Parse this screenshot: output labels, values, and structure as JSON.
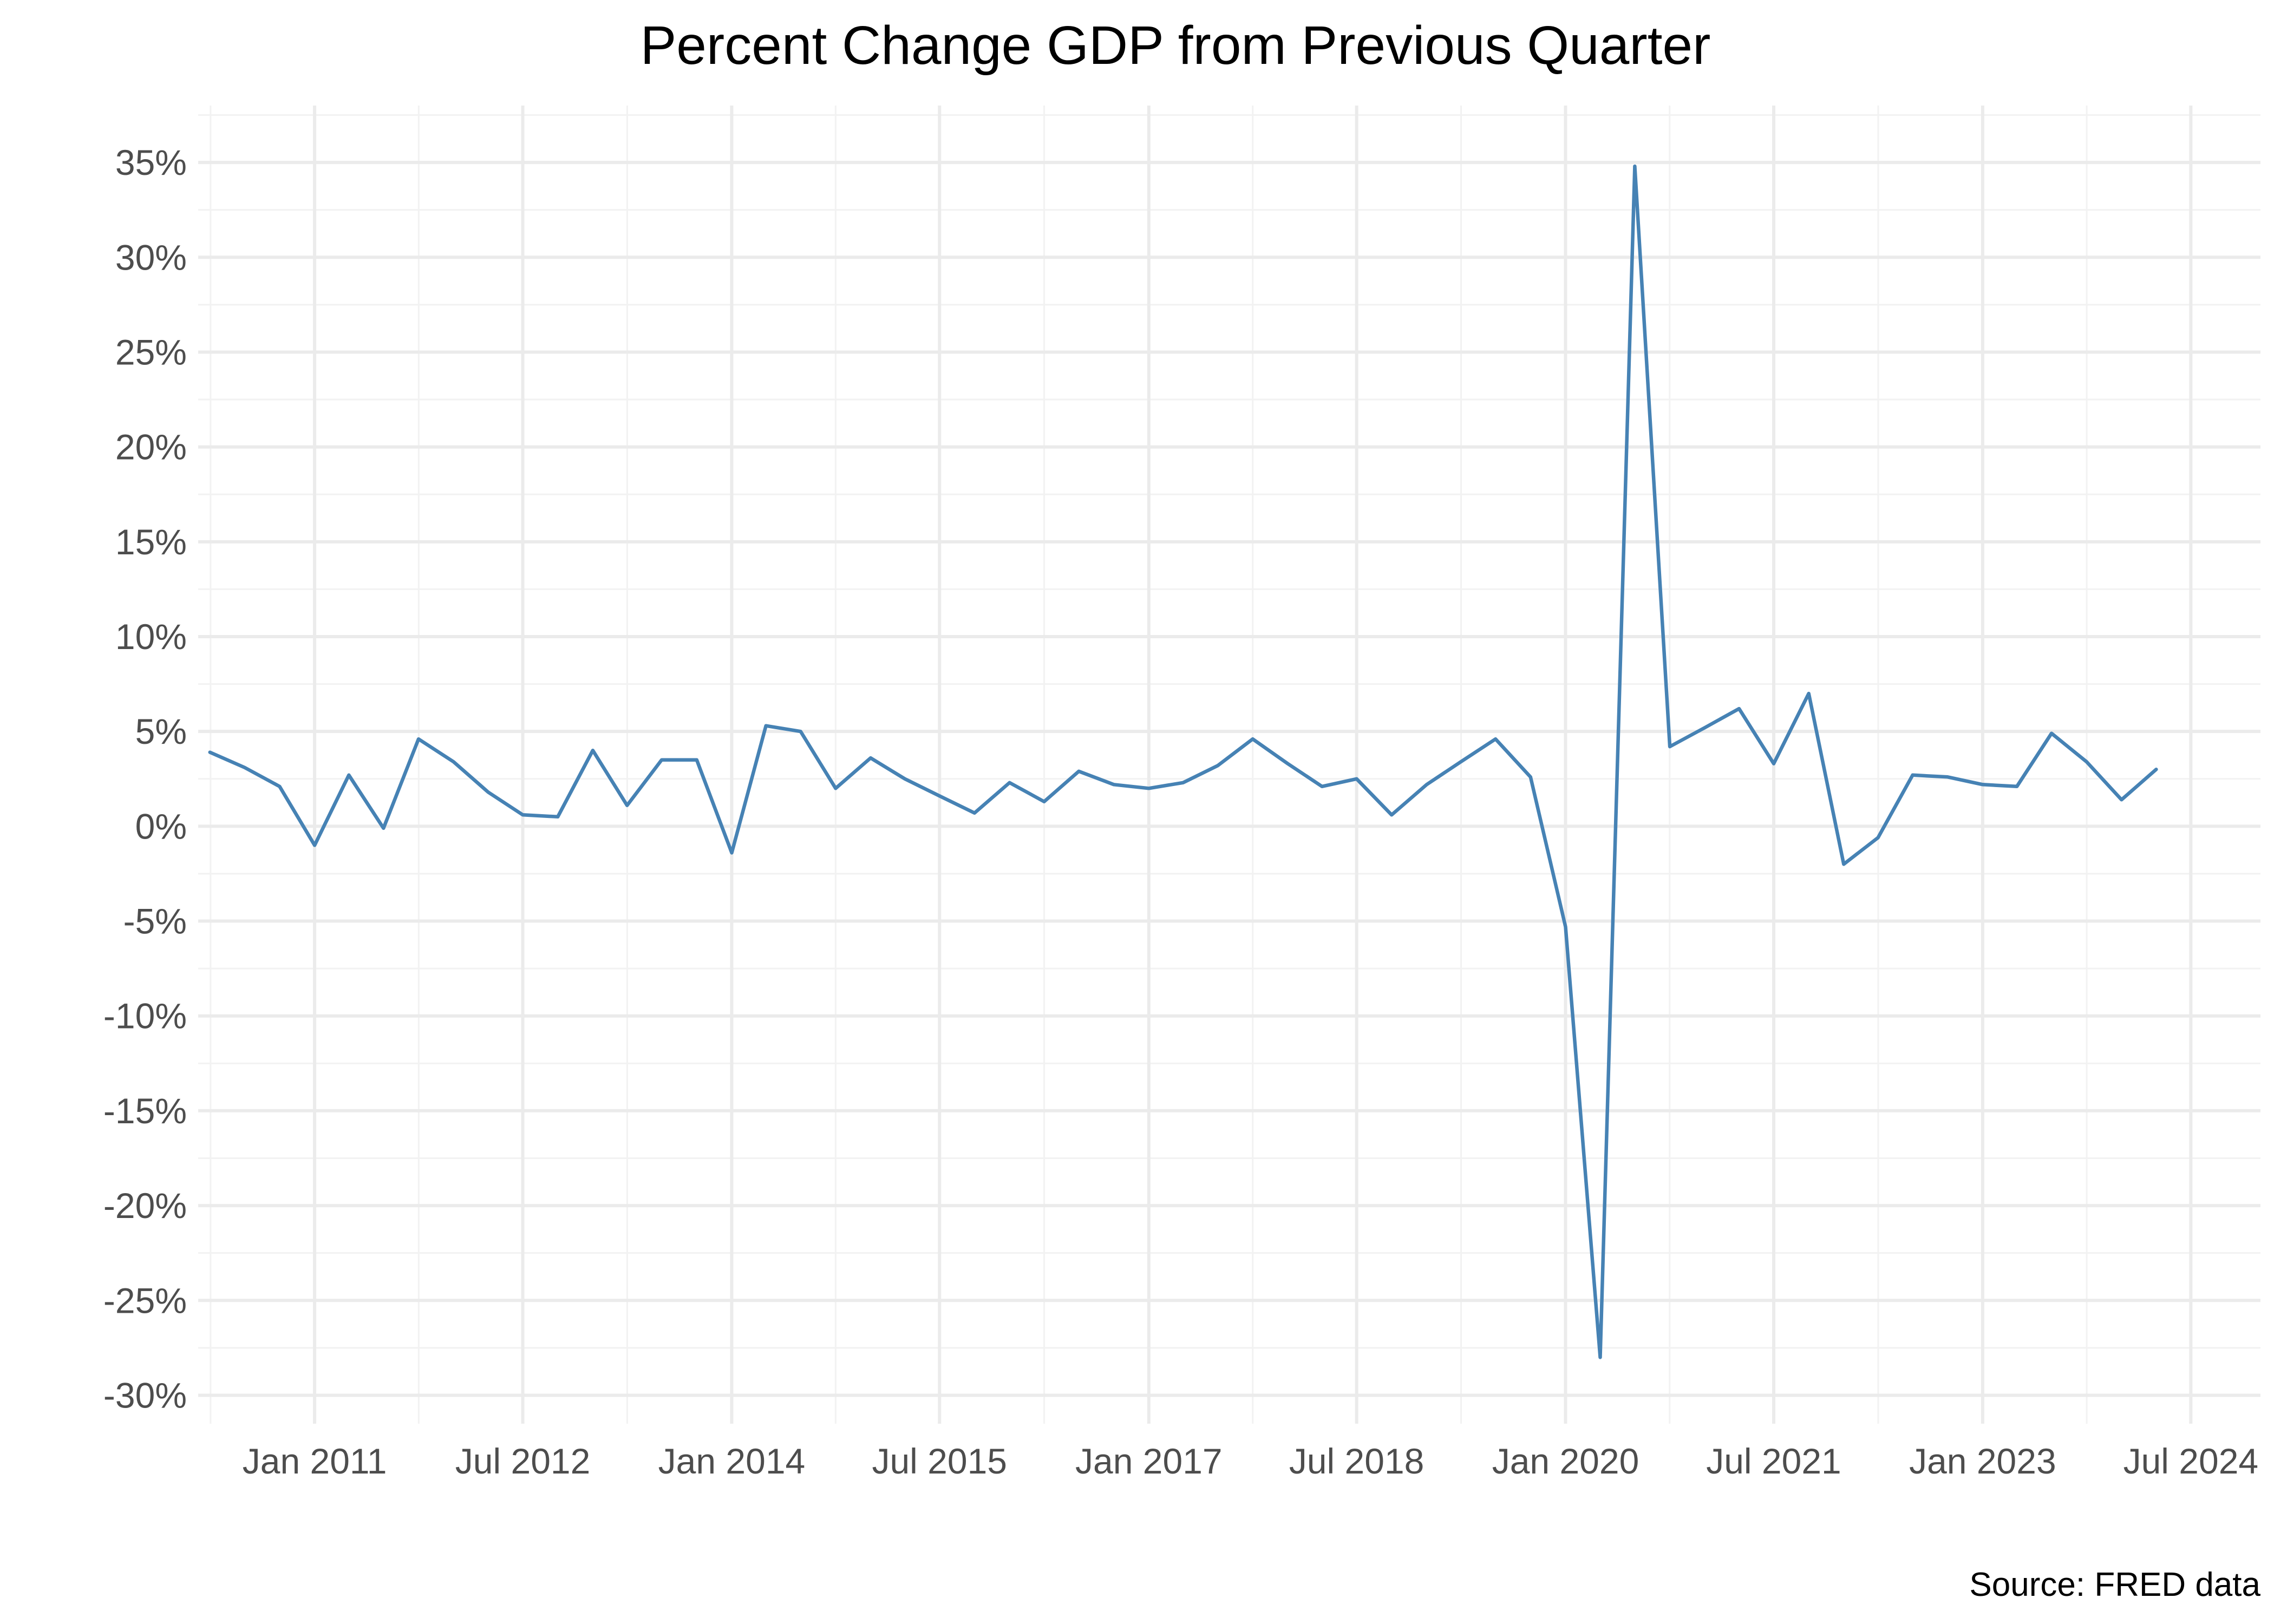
{
  "chart_data": {
    "type": "line",
    "title": "Percent Change GDP from Previous Quarter",
    "caption": "Source: FRED data",
    "xlabel": "",
    "ylabel": "",
    "x_axis": {
      "type": "date",
      "range": [
        "2010-03-01",
        "2024-12-31"
      ],
      "ticks": [
        "2011-01-01",
        "2012-07-01",
        "2014-01-01",
        "2015-07-01",
        "2017-01-01",
        "2018-07-01",
        "2020-01-01",
        "2021-07-01",
        "2023-01-01",
        "2024-07-01"
      ],
      "tick_labels": [
        "Jan 2011",
        "Jul 2012",
        "Jan 2014",
        "Jul 2015",
        "Jan 2017",
        "Jul 2018",
        "Jan 2020",
        "Jul 2021",
        "Jan 2023",
        "Jul 2024"
      ]
    },
    "y_axis": {
      "range": [
        -31.5,
        38
      ],
      "ticks": [
        -30,
        -25,
        -20,
        -15,
        -10,
        -5,
        0,
        5,
        10,
        15,
        20,
        25,
        30,
        35
      ],
      "tick_labels": [
        "-30%",
        "-25%",
        "-20%",
        "-15%",
        "-10%",
        "-5%",
        "0%",
        "5%",
        "10%",
        "15%",
        "20%",
        "25%",
        "30%",
        "35%"
      ]
    },
    "grid": true,
    "legend": "none",
    "colors": {
      "line": "#4682b4",
      "grid_major": "#ebebeb",
      "grid_minor": "#f2f2f2"
    },
    "series": [
      {
        "x": [
          "2010-04-01",
          "2010-07-01",
          "2010-10-01",
          "2011-01-01",
          "2011-04-01",
          "2011-07-01",
          "2011-10-01",
          "2012-01-01",
          "2012-04-01",
          "2012-07-01",
          "2012-10-01",
          "2013-01-01",
          "2013-04-01",
          "2013-07-01",
          "2013-10-01",
          "2014-01-01",
          "2014-04-01",
          "2014-07-01",
          "2014-10-01",
          "2015-01-01",
          "2015-04-01",
          "2015-07-01",
          "2015-10-01",
          "2016-01-01",
          "2016-04-01",
          "2016-07-01",
          "2016-10-01",
          "2017-01-01",
          "2017-04-01",
          "2017-07-01",
          "2017-10-01",
          "2018-01-01",
          "2018-04-01",
          "2018-07-01",
          "2018-10-01",
          "2019-01-01",
          "2019-04-01",
          "2019-07-01",
          "2019-10-01",
          "2020-01-01",
          "2020-04-01",
          "2020-07-01",
          "2020-10-01",
          "2021-01-01",
          "2021-04-01",
          "2021-07-01",
          "2021-10-01",
          "2022-01-01",
          "2022-04-01",
          "2022-07-01",
          "2022-10-01",
          "2023-01-01",
          "2023-04-01",
          "2023-07-01",
          "2023-10-01",
          "2024-01-01",
          "2024-04-01"
        ],
        "values": [
          3.9,
          3.1,
          2.1,
          -1.0,
          2.7,
          -0.1,
          4.6,
          3.4,
          1.8,
          0.6,
          0.5,
          4.0,
          1.1,
          3.5,
          3.5,
          -1.4,
          5.3,
          5.0,
          2.0,
          3.6,
          2.5,
          1.6,
          0.7,
          2.3,
          1.3,
          2.9,
          2.2,
          2.0,
          2.3,
          3.2,
          4.6,
          3.3,
          2.1,
          2.5,
          0.6,
          2.2,
          3.4,
          4.6,
          2.6,
          -5.3,
          -28.0,
          34.8,
          4.2,
          5.2,
          6.2,
          3.3,
          7.0,
          -2.0,
          -0.6,
          2.7,
          2.6,
          2.2,
          2.1,
          4.9,
          3.4,
          1.4,
          3.0
        ]
      }
    ]
  }
}
